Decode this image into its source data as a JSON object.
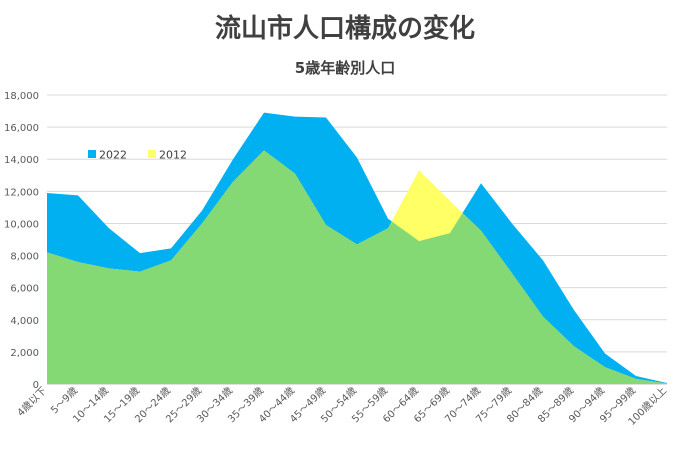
{
  "chart_data": {
    "type": "area",
    "title": "流山市人口構成の変化",
    "subtitle": "5歳年齢別人口",
    "categories": [
      "4歳以下",
      "5～9歳",
      "10～14歳",
      "15～19歳",
      "20～24歳",
      "25～29歳",
      "30～34歳",
      "35～39歳",
      "40～44歳",
      "45～49歳",
      "50～54歳",
      "55～59歳",
      "60～64歳",
      "65～69歳",
      "70～74歳",
      "75～79歳",
      "80～84歳",
      "85～89歳",
      "90～94歳",
      "95～99歳",
      "100歳以上"
    ],
    "y_ticks": [
      "0",
      "2,000",
      "4,000",
      "6,000",
      "8,000",
      "10,000",
      "12,000",
      "14,000",
      "16,000",
      "18,000"
    ],
    "ylim": [
      0,
      18000
    ],
    "grid": true,
    "legend_position": "top-left",
    "series": [
      {
        "name": "2022",
        "color": "#00b0f0",
        "values": [
          11900,
          11750,
          9700,
          8150,
          8450,
          10800,
          14000,
          16900,
          16650,
          16600,
          14100,
          10300,
          8900,
          9400,
          12500,
          10000,
          7700,
          4600,
          1900,
          500,
          60
        ]
      },
      {
        "name": "2012",
        "color": "#ffff66",
        "values": [
          8200,
          7600,
          7200,
          7000,
          7700,
          10000,
          12600,
          14550,
          13100,
          9900,
          8700,
          9700,
          13300,
          11400,
          9550,
          6900,
          4200,
          2350,
          1050,
          320,
          30
        ]
      }
    ],
    "overlap_color": "#84d974"
  }
}
